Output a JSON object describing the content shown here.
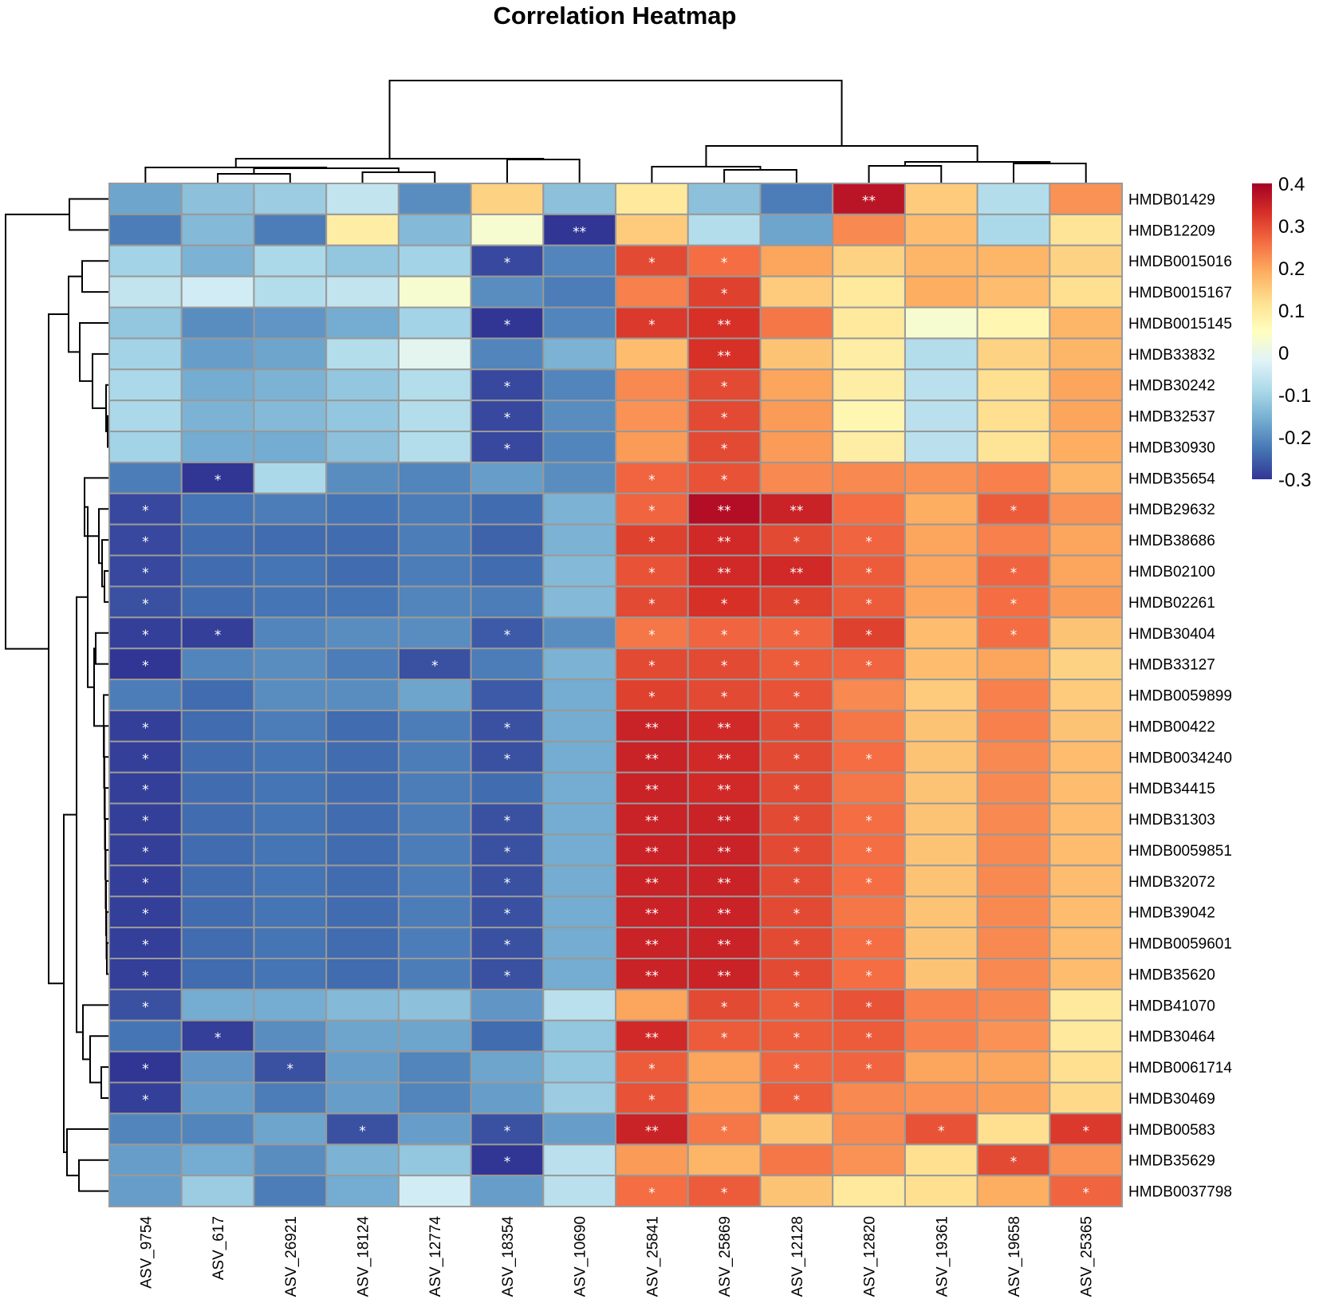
{
  "chart_data": {
    "type": "heatmap",
    "title": "Correlation Heatmap",
    "col_labels": [
      "ASV_9754",
      "ASV_617",
      "ASV_26921",
      "ASV_18124",
      "ASV_12774",
      "ASV_18354",
      "ASV_10690",
      "ASV_25841",
      "ASV_25869",
      "ASV_12128",
      "ASV_12820",
      "ASV_19361",
      "ASV_19658",
      "ASV_25365"
    ],
    "row_labels": [
      "HMDB01429",
      "HMDB12209",
      "HMDB0015016",
      "HMDB0015167",
      "HMDB0015145",
      "HMDB33832",
      "HMDB30242",
      "HMDB32537",
      "HMDB30930",
      "HMDB35654",
      "HMDB29632",
      "HMDB38686",
      "HMDB02100",
      "HMDB02261",
      "HMDB30404",
      "HMDB33127",
      "HMDB0059899",
      "HMDB00422",
      "HMDB0034240",
      "HMDB34415",
      "HMDB31303",
      "HMDB0059851",
      "HMDB32072",
      "HMDB39042",
      "HMDB0059601",
      "HMDB35620",
      "HMDB41070",
      "HMDB30464",
      "HMDB0061714",
      "HMDB30469",
      "HMDB00583",
      "HMDB35629",
      "HMDB0037798"
    ],
    "values": [
      [
        -0.17,
        -0.13,
        -0.11,
        -0.06,
        -0.2,
        0.14,
        -0.13,
        0.1,
        -0.13,
        -0.22,
        0.37,
        0.15,
        -0.08,
        0.22
      ],
      [
        -0.22,
        -0.14,
        -0.22,
        0.09,
        -0.14,
        0.03,
        -0.32,
        0.15,
        -0.08,
        -0.17,
        0.23,
        0.17,
        -0.09,
        0.11
      ],
      [
        -0.1,
        -0.15,
        -0.09,
        -0.12,
        -0.1,
        -0.28,
        -0.21,
        0.3,
        0.26,
        0.2,
        0.14,
        0.18,
        0.18,
        0.14
      ],
      [
        -0.06,
        -0.04,
        -0.08,
        -0.06,
        0.03,
        -0.2,
        -0.22,
        0.24,
        0.31,
        0.15,
        0.1,
        0.19,
        0.17,
        0.12
      ],
      [
        -0.12,
        -0.2,
        -0.19,
        -0.16,
        -0.1,
        -0.31,
        -0.21,
        0.32,
        0.33,
        0.25,
        0.1,
        0.03,
        0.07,
        0.18
      ],
      [
        -0.1,
        -0.18,
        -0.17,
        -0.08,
        -0.01,
        -0.21,
        -0.15,
        0.17,
        0.33,
        0.16,
        0.09,
        -0.08,
        0.14,
        0.18
      ],
      [
        -0.09,
        -0.16,
        -0.15,
        -0.12,
        -0.08,
        -0.28,
        -0.21,
        0.23,
        0.3,
        0.2,
        0.09,
        -0.07,
        0.12,
        0.2
      ],
      [
        -0.09,
        -0.15,
        -0.14,
        -0.12,
        -0.08,
        -0.28,
        -0.2,
        0.22,
        0.3,
        0.21,
        0.07,
        -0.07,
        0.12,
        0.2
      ],
      [
        -0.1,
        -0.16,
        -0.16,
        -0.13,
        -0.08,
        -0.28,
        -0.21,
        0.21,
        0.3,
        0.21,
        0.09,
        -0.07,
        0.11,
        0.19
      ],
      [
        -0.22,
        -0.3,
        -0.09,
        -0.2,
        -0.21,
        -0.18,
        -0.2,
        0.27,
        0.29,
        0.23,
        0.23,
        0.22,
        0.24,
        0.18
      ],
      [
        -0.28,
        -0.23,
        -0.22,
        -0.23,
        -0.22,
        -0.24,
        -0.15,
        0.27,
        0.38,
        0.35,
        0.26,
        0.19,
        0.28,
        0.22
      ],
      [
        -0.28,
        -0.24,
        -0.24,
        -0.24,
        -0.22,
        -0.25,
        -0.15,
        0.31,
        0.34,
        0.3,
        0.27,
        0.2,
        0.24,
        0.2
      ],
      [
        -0.28,
        -0.24,
        -0.23,
        -0.24,
        -0.22,
        -0.24,
        -0.14,
        0.29,
        0.34,
        0.34,
        0.28,
        0.2,
        0.27,
        0.2
      ],
      [
        -0.27,
        -0.24,
        -0.23,
        -0.23,
        -0.21,
        -0.22,
        -0.14,
        0.3,
        0.33,
        0.31,
        0.28,
        0.2,
        0.26,
        0.21
      ],
      [
        -0.29,
        -0.29,
        -0.21,
        -0.2,
        -0.2,
        -0.26,
        -0.2,
        0.25,
        0.27,
        0.27,
        0.31,
        0.17,
        0.26,
        0.16
      ],
      [
        -0.31,
        -0.21,
        -0.2,
        -0.22,
        -0.27,
        -0.22,
        -0.15,
        0.3,
        0.3,
        0.28,
        0.27,
        0.17,
        0.2,
        0.14
      ],
      [
        -0.22,
        -0.24,
        -0.2,
        -0.2,
        -0.17,
        -0.26,
        -0.16,
        0.31,
        0.3,
        0.29,
        0.23,
        0.15,
        0.24,
        0.15
      ],
      [
        -0.29,
        -0.24,
        -0.22,
        -0.24,
        -0.22,
        -0.27,
        -0.16,
        0.35,
        0.34,
        0.3,
        0.25,
        0.16,
        0.24,
        0.16
      ],
      [
        -0.29,
        -0.24,
        -0.23,
        -0.24,
        -0.22,
        -0.27,
        -0.16,
        0.35,
        0.34,
        0.3,
        0.26,
        0.16,
        0.23,
        0.17
      ],
      [
        -0.29,
        -0.24,
        -0.23,
        -0.24,
        -0.22,
        -0.24,
        -0.16,
        0.35,
        0.34,
        0.3,
        0.25,
        0.16,
        0.23,
        0.17
      ],
      [
        -0.29,
        -0.24,
        -0.23,
        -0.24,
        -0.22,
        -0.27,
        -0.16,
        0.35,
        0.35,
        0.3,
        0.26,
        0.16,
        0.23,
        0.17
      ],
      [
        -0.29,
        -0.24,
        -0.23,
        -0.24,
        -0.22,
        -0.27,
        -0.16,
        0.35,
        0.35,
        0.3,
        0.26,
        0.16,
        0.23,
        0.17
      ],
      [
        -0.29,
        -0.24,
        -0.23,
        -0.24,
        -0.22,
        -0.27,
        -0.16,
        0.35,
        0.35,
        0.3,
        0.26,
        0.16,
        0.23,
        0.17
      ],
      [
        -0.29,
        -0.24,
        -0.23,
        -0.24,
        -0.22,
        -0.27,
        -0.16,
        0.35,
        0.35,
        0.3,
        0.25,
        0.16,
        0.23,
        0.17
      ],
      [
        -0.29,
        -0.24,
        -0.23,
        -0.24,
        -0.22,
        -0.27,
        -0.16,
        0.35,
        0.35,
        0.3,
        0.26,
        0.16,
        0.23,
        0.17
      ],
      [
        -0.29,
        -0.24,
        -0.23,
        -0.24,
        -0.22,
        -0.27,
        -0.16,
        0.35,
        0.35,
        0.3,
        0.26,
        0.16,
        0.23,
        0.17
      ],
      [
        -0.27,
        -0.16,
        -0.16,
        -0.14,
        -0.13,
        -0.19,
        -0.07,
        0.2,
        0.3,
        0.28,
        0.29,
        0.24,
        0.23,
        0.1
      ],
      [
        -0.23,
        -0.29,
        -0.2,
        -0.17,
        -0.17,
        -0.24,
        -0.12,
        0.34,
        0.28,
        0.28,
        0.28,
        0.24,
        0.22,
        0.1
      ],
      [
        -0.32,
        -0.19,
        -0.27,
        -0.18,
        -0.21,
        -0.17,
        -0.12,
        0.28,
        0.2,
        0.27,
        0.27,
        0.2,
        0.2,
        0.12
      ],
      [
        -0.29,
        -0.18,
        -0.22,
        -0.18,
        -0.21,
        -0.18,
        -0.11,
        0.29,
        0.2,
        0.28,
        0.23,
        0.22,
        0.21,
        0.13
      ],
      [
        -0.21,
        -0.21,
        -0.17,
        -0.27,
        -0.18,
        -0.27,
        -0.18,
        0.35,
        0.25,
        0.16,
        0.23,
        0.29,
        0.12,
        0.32
      ],
      [
        -0.18,
        -0.16,
        -0.2,
        -0.15,
        -0.12,
        -0.3,
        -0.07,
        0.21,
        0.18,
        0.25,
        0.22,
        0.12,
        0.3,
        0.22
      ],
      [
        -0.18,
        -0.11,
        -0.22,
        -0.16,
        -0.04,
        -0.18,
        -0.07,
        0.26,
        0.28,
        0.16,
        0.1,
        0.12,
        0.19,
        0.27
      ]
    ],
    "significance": [
      [
        "",
        "",
        "",
        "",
        "",
        "",
        "",
        "",
        "",
        "",
        "**",
        "",
        "",
        ""
      ],
      [
        "",
        "",
        "",
        "",
        "",
        "",
        "**",
        "",
        "",
        "",
        "",
        "",
        "",
        ""
      ],
      [
        "",
        "",
        "",
        "",
        "",
        "*",
        "",
        "*",
        "*",
        "",
        "",
        "",
        "",
        ""
      ],
      [
        "",
        "",
        "",
        "",
        "",
        "",
        "",
        "",
        "*",
        "",
        "",
        "",
        "",
        ""
      ],
      [
        "",
        "",
        "",
        "",
        "",
        "*",
        "",
        "*",
        "**",
        "",
        "",
        "",
        "",
        ""
      ],
      [
        "",
        "",
        "",
        "",
        "",
        "",
        "",
        "",
        "**",
        "",
        "",
        "",
        "",
        ""
      ],
      [
        "",
        "",
        "",
        "",
        "",
        "*",
        "",
        "",
        "*",
        "",
        "",
        "",
        "",
        ""
      ],
      [
        "",
        "",
        "",
        "",
        "",
        "*",
        "",
        "",
        "*",
        "",
        "",
        "",
        "",
        ""
      ],
      [
        "",
        "",
        "",
        "",
        "",
        "*",
        "",
        "",
        "*",
        "",
        "",
        "",
        "",
        ""
      ],
      [
        "",
        "*",
        "",
        "",
        "",
        "",
        "",
        "*",
        "*",
        "",
        "",
        "",
        "",
        ""
      ],
      [
        "*",
        "",
        "",
        "",
        "",
        "",
        "",
        "*",
        "**",
        "**",
        "",
        "",
        "*",
        ""
      ],
      [
        "*",
        "",
        "",
        "",
        "",
        "",
        "",
        "*",
        "**",
        "*",
        "*",
        "",
        "",
        ""
      ],
      [
        "*",
        "",
        "",
        "",
        "",
        "",
        "",
        "*",
        "**",
        "**",
        "*",
        "",
        "*",
        ""
      ],
      [
        "*",
        "",
        "",
        "",
        "",
        "",
        "",
        "*",
        "*",
        "*",
        "*",
        "",
        "*",
        ""
      ],
      [
        "*",
        "*",
        "",
        "",
        "",
        "*",
        "",
        "*",
        "*",
        "*",
        "*",
        "",
        "*",
        ""
      ],
      [
        "*",
        "",
        "",
        "",
        "*",
        "",
        "",
        "*",
        "*",
        "*",
        "*",
        "",
        "",
        ""
      ],
      [
        "",
        "",
        "",
        "",
        "",
        "",
        "",
        "*",
        "*",
        "*",
        "",
        "",
        "",
        ""
      ],
      [
        "*",
        "",
        "",
        "",
        "",
        "*",
        "",
        "**",
        "**",
        "*",
        "",
        "",
        "",
        ""
      ],
      [
        "*",
        "",
        "",
        "",
        "",
        "*",
        "",
        "**",
        "**",
        "*",
        "*",
        "",
        "",
        ""
      ],
      [
        "*",
        "",
        "",
        "",
        "",
        "",
        "",
        "**",
        "**",
        "*",
        "",
        "",
        "",
        ""
      ],
      [
        "*",
        "",
        "",
        "",
        "",
        "*",
        "",
        "**",
        "**",
        "*",
        "*",
        "",
        "",
        ""
      ],
      [
        "*",
        "",
        "",
        "",
        "",
        "*",
        "",
        "**",
        "**",
        "*",
        "*",
        "",
        "",
        ""
      ],
      [
        "*",
        "",
        "",
        "",
        "",
        "*",
        "",
        "**",
        "**",
        "*",
        "*",
        "",
        "",
        ""
      ],
      [
        "*",
        "",
        "",
        "",
        "",
        "*",
        "",
        "**",
        "**",
        "*",
        "",
        "",
        "",
        ""
      ],
      [
        "*",
        "",
        "",
        "",
        "",
        "*",
        "",
        "**",
        "**",
        "*",
        "*",
        "",
        "",
        ""
      ],
      [
        "*",
        "",
        "",
        "",
        "",
        "*",
        "",
        "**",
        "**",
        "*",
        "*",
        "",
        "",
        ""
      ],
      [
        "*",
        "",
        "",
        "",
        "",
        "",
        "",
        "",
        "*",
        "*",
        "*",
        "",
        "",
        ""
      ],
      [
        "",
        "*",
        "",
        "",
        "",
        "",
        "",
        "**",
        "*",
        "*",
        "*",
        "",
        "",
        ""
      ],
      [
        "*",
        "",
        "*",
        "",
        "",
        "",
        "",
        "*",
        "",
        "*",
        "*",
        "",
        "",
        ""
      ],
      [
        "*",
        "",
        "",
        "",
        "",
        "",
        "",
        "*",
        "",
        "*",
        "",
        "",
        "",
        ""
      ],
      [
        "",
        "",
        "",
        "*",
        "",
        "*",
        "",
        "**",
        "*",
        "",
        "",
        "*",
        "",
        "*"
      ],
      [
        "",
        "",
        "",
        "",
        "",
        "*",
        "",
        "",
        "",
        "",
        "",
        "",
        "*",
        ""
      ],
      [
        "",
        "",
        "",
        "",
        "",
        "",
        "",
        "*",
        "*",
        "",
        "",
        "",
        "",
        "*"
      ]
    ],
    "colorbar": {
      "range": [
        -0.3,
        0.4
      ],
      "ticks": [
        0.4,
        0.3,
        0.2,
        0.1,
        0,
        -0.1,
        -0.2,
        -0.3
      ],
      "tick_labels": [
        "0.4",
        "0.3",
        "0.2",
        "0.1",
        "0",
        "-0.1",
        "-0.2",
        "-0.3"
      ],
      "palette": [
        "#313695",
        "#4575b4",
        "#74add1",
        "#abd9e9",
        "#e0f3f8",
        "#ffffbf",
        "#fee090",
        "#fdae61",
        "#f46d43",
        "#d73027",
        "#a50026"
      ]
    },
    "grid_color": "#999999",
    "significance_color": "#ffffff",
    "legend": "right"
  }
}
